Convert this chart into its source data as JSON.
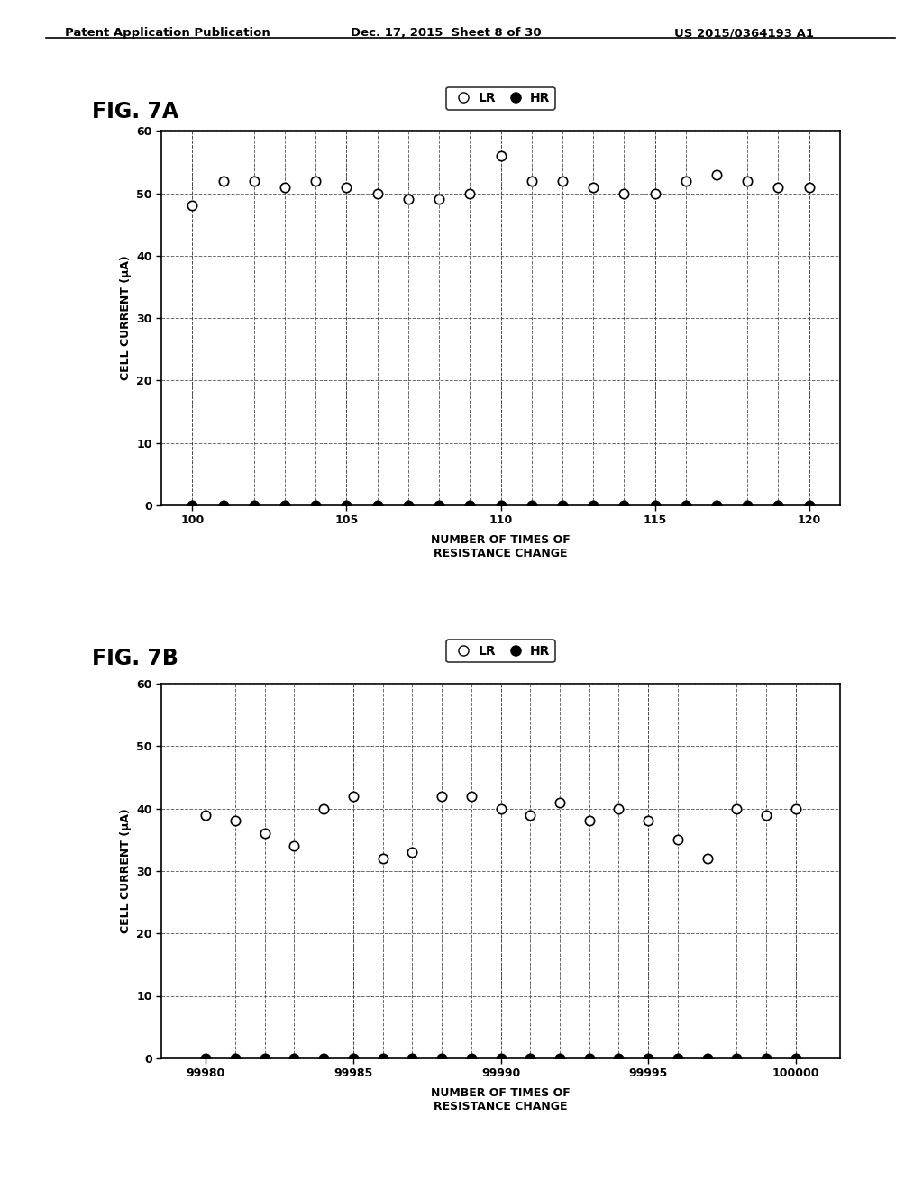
{
  "header_left": "Patent Application Publication",
  "header_mid": "Dec. 17, 2015  Sheet 8 of 30",
  "header_right": "US 2015/0364193 A1",
  "fig7a_label": "FIG. 7A",
  "fig7b_label": "FIG. 7B",
  "ylabel": "CELL CURRENT (μA)",
  "xlabel": "NUMBER OF TIMES OF\nRESISTANCE CHANGE",
  "legend_lr": "LR",
  "legend_hr": "HR",
  "fig7a_xlim": [
    99.0,
    121.0
  ],
  "fig7a_xticks": [
    100,
    105,
    110,
    115,
    120
  ],
  "fig7a_ylim": [
    0,
    60
  ],
  "fig7a_yticks": [
    0,
    10,
    20,
    30,
    40,
    50,
    60
  ],
  "fig7b_xlim": [
    99978.5,
    100001.5
  ],
  "fig7b_xticks": [
    99980,
    99985,
    99990,
    99995,
    100000
  ],
  "fig7b_ylim": [
    0,
    60
  ],
  "fig7b_yticks": [
    0,
    10,
    20,
    30,
    40,
    50,
    60
  ],
  "fig7a_lr_x": [
    100,
    101,
    102,
    103,
    104,
    105,
    106,
    107,
    108,
    109,
    110,
    111,
    112,
    113,
    114,
    115,
    116,
    117,
    118,
    119,
    120
  ],
  "fig7a_lr_y": [
    48,
    52,
    52,
    51,
    52,
    51,
    50,
    49,
    49,
    50,
    56,
    52,
    52,
    51,
    50,
    50,
    52,
    53,
    52,
    51,
    51
  ],
  "fig7a_hr_x": [
    100,
    101,
    102,
    103,
    104,
    105,
    106,
    107,
    108,
    109,
    110,
    111,
    112,
    113,
    114,
    115,
    116,
    117,
    118,
    119,
    120
  ],
  "fig7a_hr_y": [
    0,
    0,
    0,
    0,
    0,
    0,
    0,
    0,
    0,
    0,
    0,
    0,
    0,
    0,
    0,
    0,
    0,
    0,
    0,
    0,
    0
  ],
  "fig7b_lr_x": [
    99980,
    99981,
    99982,
    99983,
    99984,
    99985,
    99986,
    99987,
    99988,
    99989,
    99990,
    99991,
    99992,
    99993,
    99994,
    99995,
    99996,
    99997,
    99998,
    99999,
    100000
  ],
  "fig7b_lr_y": [
    39,
    38,
    36,
    34,
    40,
    42,
    32,
    33,
    42,
    42,
    40,
    39,
    41,
    38,
    40,
    38,
    35,
    32,
    40,
    39,
    40
  ],
  "fig7b_hr_x": [
    99980,
    99981,
    99982,
    99983,
    99984,
    99985,
    99986,
    99987,
    99988,
    99989,
    99990,
    99991,
    99992,
    99993,
    99994,
    99995,
    99996,
    99997,
    99998,
    99999,
    100000
  ],
  "fig7b_hr_y": [
    0,
    0,
    0,
    0,
    0,
    0,
    0,
    0,
    0,
    0,
    0,
    0,
    0,
    0,
    0,
    0,
    0,
    0,
    0,
    0,
    0
  ],
  "bg_color": "#ffffff",
  "marker_lr_color": "#ffffff",
  "marker_lr_edge": "#000000",
  "marker_hr_color": "#000000",
  "marker_size_lr": 56,
  "marker_size_hr": 56,
  "grid_color": "#444444",
  "grid_style": "--",
  "grid_alpha": 0.8,
  "grid_lw": 0.7
}
